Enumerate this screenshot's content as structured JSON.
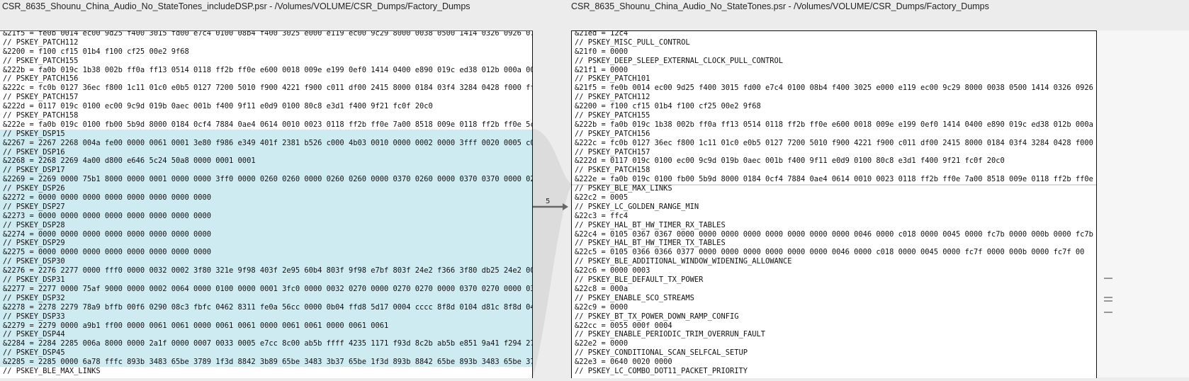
{
  "left": {
    "title": "CSR_8635_Shounu_China_Audio_No_StateTones_includeDSP.psr - /Volumes/VOLUME/CSR_Dumps/Factory_Dumps",
    "lines": [
      {
        "text": "&21f5 = fe0b 0014 ec00 9d25 f400 3015 fd00 e7c4 0100 08b4 f400 3025 e000 e119 ec00 9c29 8000 0038 0500 1414 0326 0926 07",
        "hl": false
      },
      {
        "text": "// PSKEY_PATCH112",
        "hl": false
      },
      {
        "text": "&2200 = f100 cf15 01b4 f100 cf25 00e2 9f68",
        "hl": false
      },
      {
        "text": "// PSKEY_PATCH155",
        "hl": false
      },
      {
        "text": "&222b = fa0b 019c 1b38 002b ff0a ff13 0514 0118 ff2b ff0e e600 0018 009e e199 0ef0 1414 0400 e890 019c ed38 012b 000a 00",
        "hl": false
      },
      {
        "text": "// PSKEY_PATCH156",
        "hl": false
      },
      {
        "text": "&222c = fc0b 0127 36ec f800 1c11 01c0 e0b5 0127 7200 5010 f900 4221 f900 c011 df00 2415 8000 0184 03f4 3284 0428 f000 ff",
        "hl": false
      },
      {
        "text": "// PSKEY_PATCH157",
        "hl": false
      },
      {
        "text": "&222d = 0117 019c 0100 ec00 9c9d 019b 0aec 001b f400 9f11 e0d9 0100 80c8 e3d1 f400 9f21 fc0f 20c0",
        "hl": false
      },
      {
        "text": "// PSKEY_PATCH158",
        "hl": false
      },
      {
        "text": "&222e = fa0b 019c 0100 fb00 5b9d 8000 0184 0cf4 7884 0ae4 0614 0010 0023 0118 ff2b ff0e 7a00 8518 009e 0118 ff2b ff0e 5c",
        "hl": false
      },
      {
        "text": "// PSKEY_DSP15",
        "hl": true
      },
      {
        "text": "&2267 = 2267 2268 004a fe00 0000 0061 0001 3e80 f986 e349 401f 2381 b526 c000 4b03 0010 0000 0002 0000 3fff 0020 0005 c0",
        "hl": true
      },
      {
        "text": "// PSKEY_DSP16",
        "hl": true
      },
      {
        "text": "&2268 = 2268 2269 4a00 d800 e646 5c24 50a8 0000 0001 0001",
        "hl": true
      },
      {
        "text": "// PSKEY_DSP17",
        "hl": true
      },
      {
        "text": "&2269 = 2269 0000 75b1 8000 0000 0001 0000 0000 3ff0 0000 0260 0260 0000 0260 0260 0000 0370 0260 0000 0370 0370 0000 02",
        "hl": true
      },
      {
        "text": "// PSKEY_DSP26",
        "hl": true
      },
      {
        "text": "&2272 = 0000 0000 0000 0000 0000 0000 0000 0000",
        "hl": true
      },
      {
        "text": "// PSKEY_DSP27",
        "hl": true
      },
      {
        "text": "&2273 = 0000 0000 0000 0000 0000 0000 0000 0000",
        "hl": true
      },
      {
        "text": "// PSKEY_DSP28",
        "hl": true
      },
      {
        "text": "&2274 = 0000 0000 0000 0000 0000 0000 0000 0000",
        "hl": true
      },
      {
        "text": "// PSKEY_DSP29",
        "hl": true
      },
      {
        "text": "&2275 = 0000 0000 0000 0000 0000 0000 0000 0000",
        "hl": true
      },
      {
        "text": "// PSKEY_DSP30",
        "hl": true
      },
      {
        "text": "&2276 = 2276 2277 0000 fff0 0000 0032 0002 3f80 321e 9f98 403f 2e95 60b4 803f 9f98 e7bf 803f 24e2 f366 3f80 db25 24e2 00",
        "hl": true
      },
      {
        "text": "// PSKEY_DSP31",
        "hl": true
      },
      {
        "text": "&2277 = 2277 0000 75af 9000 0000 0002 0064 0000 0100 0000 0001 3fc0 0000 0032 0270 0000 0270 0270 0000 0370 0270 0000 03",
        "hl": true
      },
      {
        "text": "// PSKEY_DSP32",
        "hl": true
      },
      {
        "text": "&2278 = 2278 2279 78a9 bffb 00f6 0290 08c3 fbfc 0462 8311 fe0a 56cc 0000 0b04 ffd8 5d17 0004 cccc 8f8d 0104 d81c 8f8d 04",
        "hl": true
      },
      {
        "text": "// PSKEY_DSP33",
        "hl": true
      },
      {
        "text": "&2279 = 2279 0000 a9b1 ff00 0000 0061 0061 0000 0061 0061 0000 0061 0061 0000 0061 0061",
        "hl": true
      },
      {
        "text": "// PSKEY_DSP44",
        "hl": true
      },
      {
        "text": "&2284 = 2284 2285 006a 8000 0000 2a1f 0000 0007 0033 0005 e7cc 8c00 ab5b ffff 4235 1171 f93d 8c2b ab5b e851 9a41 f294 27",
        "hl": true
      },
      {
        "text": "// PSKEY_DSP45",
        "hl": true
      },
      {
        "text": "&2285 = 2285 0000 6a78 fffc 893b 3483 65be 3789 1f3d 8842 3b89 65be 3483 3b37 65be 1f3d 893b 8842 65be 893b 3483 65be 37",
        "hl": true
      },
      {
        "text": "// PSKEY_BLE_MAX_LINKS",
        "hl": false
      }
    ]
  },
  "right": {
    "title": "CSR_8635_Shounu_China_Audio_No_StateTones.psr - /Volumes/VOLUME/CSR_Dumps/Factory_Dumps",
    "lines": [
      {
        "text": "&21ed = 12c4"
      },
      {
        "text": "// PSKEY_MISC_PULL_CONTROL"
      },
      {
        "text": "&21f0 = 0000"
      },
      {
        "text": "// PSKEY_DEEP_SLEEP_EXTERNAL_CLOCK_PULL_CONTROL"
      },
      {
        "text": "&21f1 = 0000"
      },
      {
        "text": "// PSKEY_PATCH101"
      },
      {
        "text": "&21f5 = fe0b 0014 ec00 9d25 f400 3015 fd00 e7c4 0100 08b4 f400 3025 e000 e119 ec00 9c29 8000 0038 0500 1414 0326 0926 07"
      },
      {
        "text": "// PSKEY_PATCH112"
      },
      {
        "text": "&2200 = f100 cf15 01b4 f100 cf25 00e2 9f68"
      },
      {
        "text": "// PSKEY_PATCH155"
      },
      {
        "text": "&222b = fa0b 019c 1b38 002b ff0a ff13 0514 0118 ff2b ff0e e600 0018 009e e199 0ef0 1414 0400 e890 019c ed38 012b 000a 00"
      },
      {
        "text": "// PSKEY_PATCH156"
      },
      {
        "text": "&222c = fc0b 0127 36ec f800 1c11 01c0 e0b5 0127 7200 5010 f900 4221 f900 c011 df00 2415 8000 0184 03f4 3284 0428 f000 ff"
      },
      {
        "text": "// PSKEY_PATCH157"
      },
      {
        "text": "&222d = 0117 019c 0100 ec00 9c9d 019b 0aec 001b f400 9f11 e0d9 0100 80c8 e3d1 f400 9f21 fc0f 20c0"
      },
      {
        "text": "// PSKEY_PATCH158"
      },
      {
        "text": "&222e = fa0b 019c 0100 fb00 5b9d 8000 0184 0cf4 7884 0ae4 0614 0010 0023 0118 ff2b ff0e 7a00 8518 009e 0118 ff2b ff0e 5c"
      },
      {
        "text": "// PSKEY_BLE_MAX_LINKS",
        "sep": true
      },
      {
        "text": "&22c2 = 0005"
      },
      {
        "text": "// PSKEY_LC_GOLDEN_RANGE_MIN"
      },
      {
        "text": "&22c3 = ffc4"
      },
      {
        "text": "// PSKEY_HAL_BT_HW_TIMER_RX_TABLES"
      },
      {
        "text": "&22c4 = 0105 0367 0367 0000 0000 0000 0000 0000 0000 0000 0000 0046 0000 c018 0000 0045 0000 fc7b 0000 000b 0000 fc7b 00"
      },
      {
        "text": "// PSKEY_HAL_BT_HW_TIMER_TX_TABLES"
      },
      {
        "text": "&22c5 = 0105 0366 0366 0377 0000 0000 0000 0000 0000 0000 0046 0000 c018 0000 0045 0000 fc7f 0000 000b 0000 fc7f 00"
      },
      {
        "text": "// PSKEY_BLE_ADDITIONAL_WINDOW_WIDENING_ALLOWANCE"
      },
      {
        "text": "&22c6 = 0000 0003"
      },
      {
        "text": "// PSKEY_BLE_DEFAULT_TX_POWER"
      },
      {
        "text": "&22c8 = 000a"
      },
      {
        "text": "// PSKEY_ENABLE_SCO_STREAMS"
      },
      {
        "text": "&22c9 = 0000"
      },
      {
        "text": "// PSKEY_BT_TX_POWER_DOWN_RAMP_CONFIG"
      },
      {
        "text": "&22cc = 0055 000f 0004"
      },
      {
        "text": "// PSKEY_ENABLE_PERIODIC_TRIM_OVERRUN_FAULT"
      },
      {
        "text": "&22e2 = 0000"
      },
      {
        "text": "// PSKEY_CONDITIONAL_SCAN_SELFCAL_SETUP"
      },
      {
        "text": "&22e3 = 0640 0020 0000"
      },
      {
        "text": "// PSKEY_LC_COMBO_DOT11_PACKET_PRIORITY"
      }
    ]
  },
  "gutter": {
    "diff_number": "5",
    "arrow_icon": "right-arrow"
  },
  "colors": {
    "highlight": "#cfebf2",
    "connector": "#dcdcdc"
  }
}
